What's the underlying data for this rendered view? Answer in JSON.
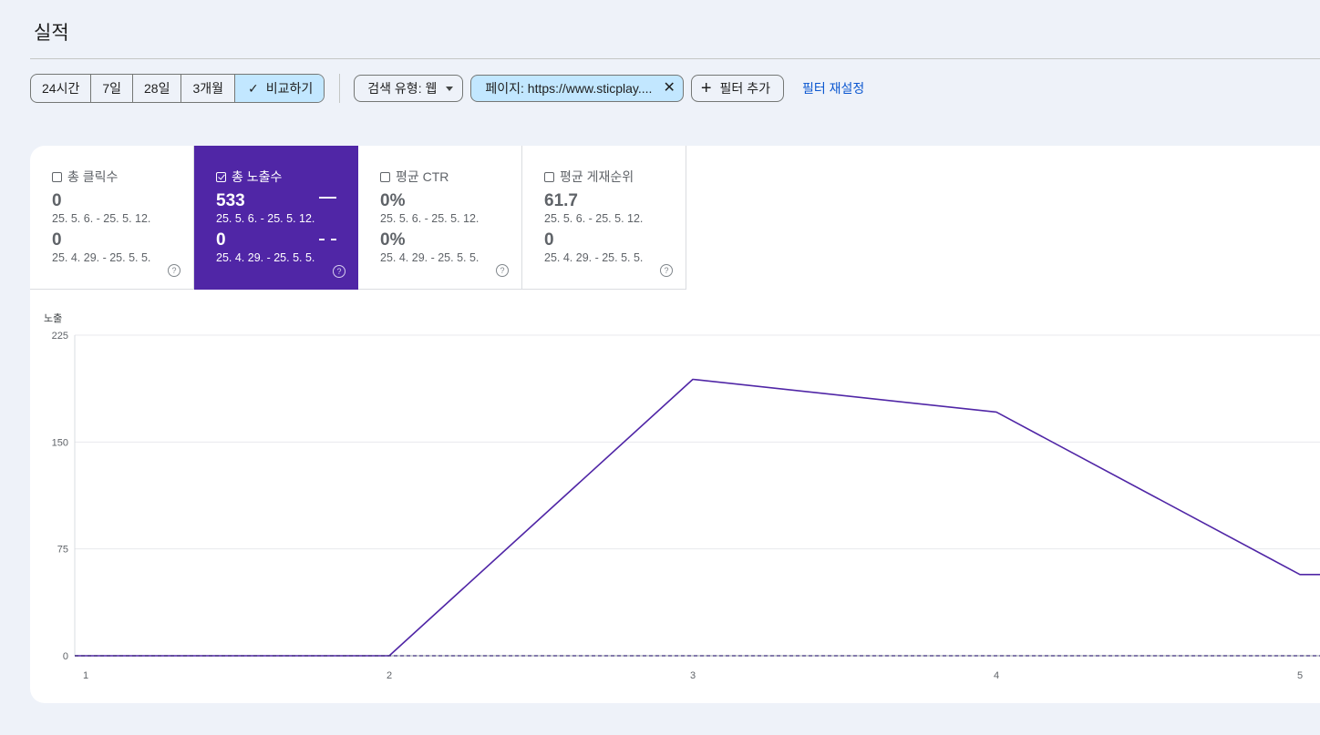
{
  "page": {
    "title": "실적"
  },
  "toolbar": {
    "ranges": [
      "24시간",
      "7일",
      "28일",
      "3개월"
    ],
    "compare": "비교하기",
    "search_type": "검색 유형: 웹",
    "page_filter": "페이지: https://www.sticplay....",
    "add_filter": "필터 추가",
    "reset": "필터 재설정"
  },
  "metrics": [
    {
      "label": "총 클릭수",
      "current": "0",
      "current_range": "25. 5. 6. - 25. 5. 12.",
      "previous": "0",
      "previous_range": "25. 4. 29. - 25. 5. 5.",
      "checked": false
    },
    {
      "label": "총 노출수",
      "current": "533",
      "current_range": "25. 5. 6. - 25. 5. 12.",
      "previous": "0",
      "previous_range": "25. 4. 29. - 25. 5. 5.",
      "checked": true
    },
    {
      "label": "평균 CTR",
      "current": "0%",
      "current_range": "25. 5. 6. - 25. 5. 12.",
      "previous": "0%",
      "previous_range": "25. 4. 29. - 25. 5. 5.",
      "checked": false
    },
    {
      "label": "평균 게재순위",
      "current": "61.7",
      "current_range": "25. 5. 6. - 25. 5. 12.",
      "previous": "0",
      "previous_range": "25. 4. 29. - 25. 5. 5.",
      "checked": false
    }
  ],
  "colors": {
    "accent": "#5026a6",
    "chip_selected": "#c2e7ff",
    "link": "#0b57d0"
  },
  "chart_data": {
    "type": "line",
    "ylabel": "노출",
    "ylim": [
      0,
      225
    ],
    "yticks": [
      0,
      75,
      150,
      225
    ],
    "x": [
      1,
      2,
      3,
      4,
      5
    ],
    "series": [
      {
        "values": [
          0,
          0,
          194,
          171,
          57
        ],
        "style": "solid"
      },
      {
        "values": [
          0,
          0,
          0,
          0,
          0
        ],
        "style": "dashed"
      }
    ]
  }
}
